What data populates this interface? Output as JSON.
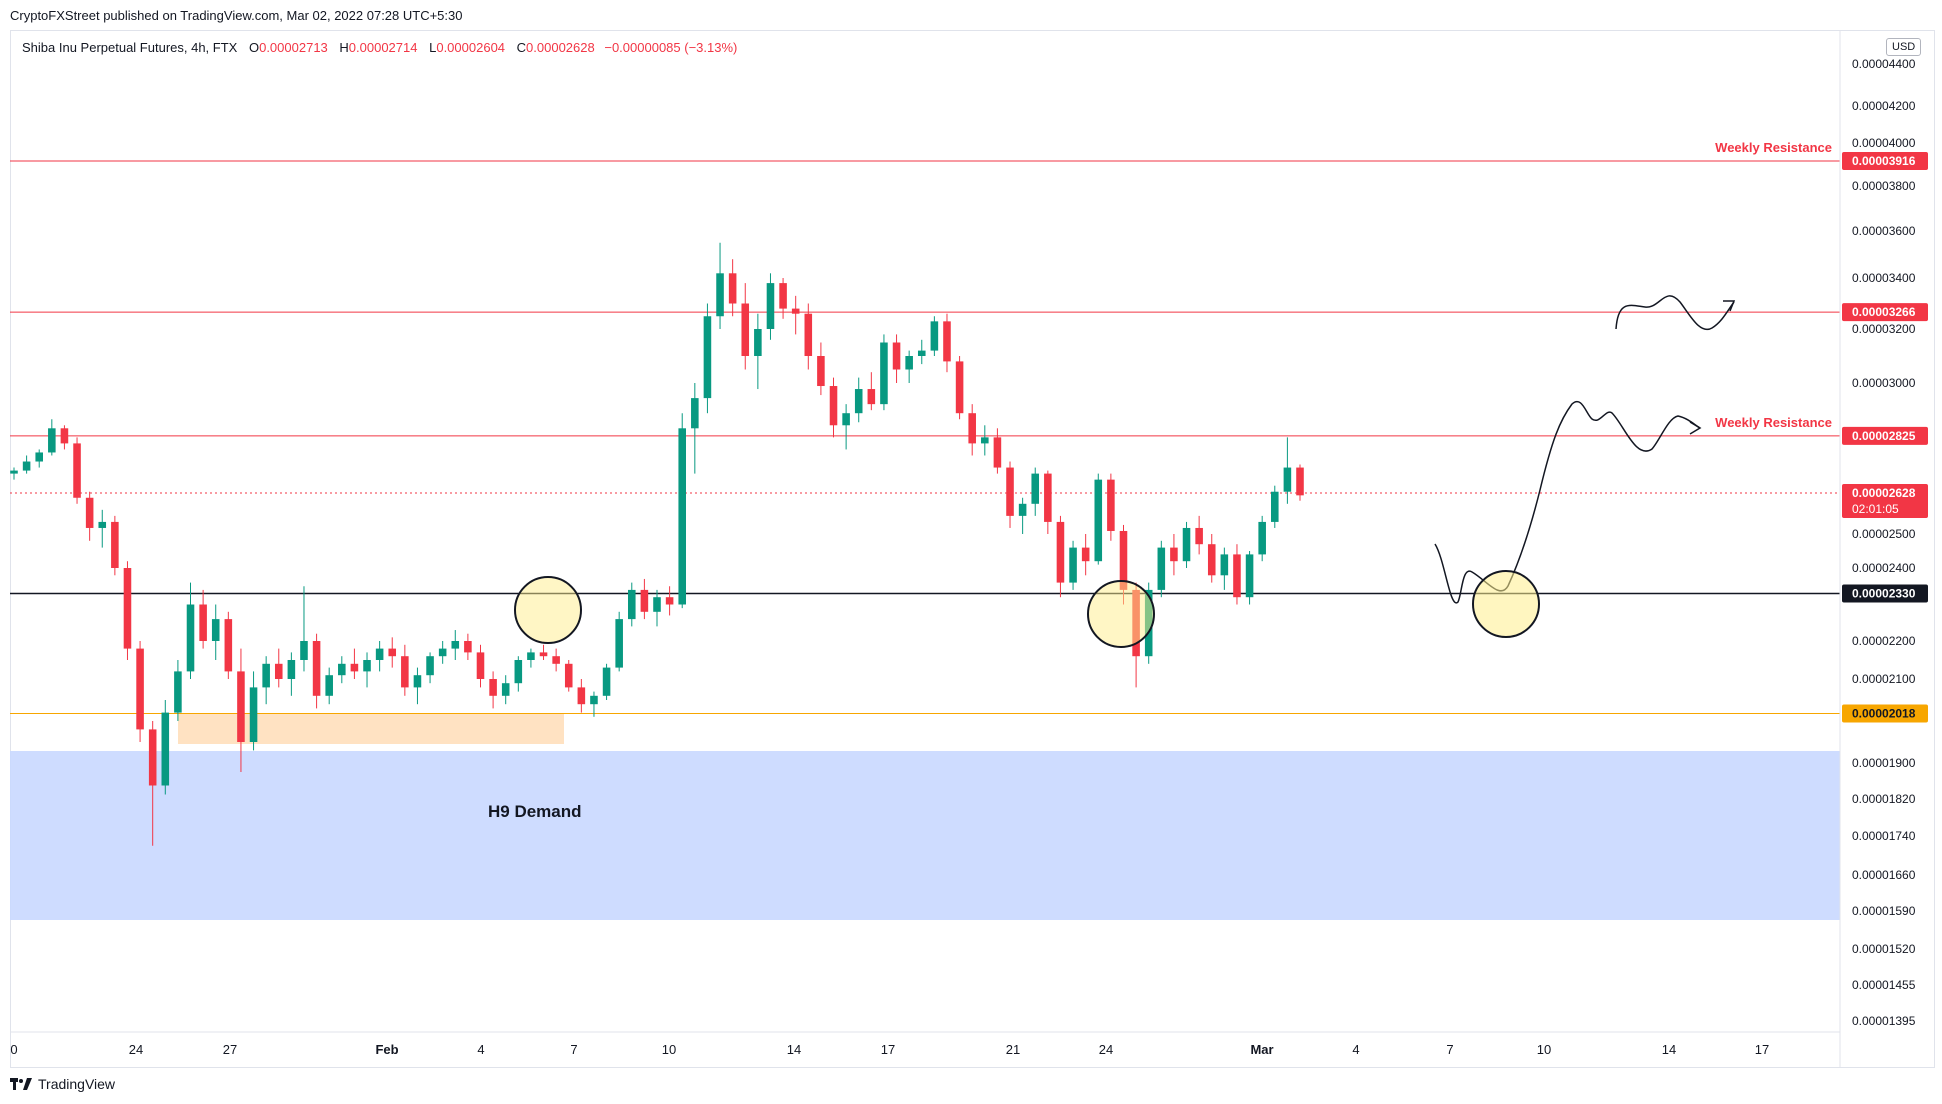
{
  "attribution": "CryptoFXStreet published on TradingView.com, Mar 02, 2022 07:28 UTC+5:30",
  "legend": {
    "symbol": "Shiba Inu Perpetual Futures, 4h, FTX",
    "o_label": "O",
    "o_value": "0.00002713",
    "h_label": "H",
    "h_value": "0.00002714",
    "l_label": "L",
    "l_value": "0.00002604",
    "c_label": "C",
    "c_value": "0.00002628",
    "change": "−0.00000085 (−3.13%)"
  },
  "currency": "USD",
  "footer": {
    "brand": "TradingView",
    "logo_icon": "tradingview-logo-icon"
  },
  "colors": {
    "up": "#089981",
    "down": "#f23645",
    "resistance": "#f23645",
    "support": "#131722",
    "orange": "#f7a600",
    "demand": "#c9d8ff"
  },
  "chart_data": {
    "type": "candlestick",
    "title": "",
    "xlabel": "",
    "ylabel": "",
    "y_ticks": [
      "0.00004400",
      "0.00004200",
      "0.00004000",
      "0.00003800",
      "0.00003600",
      "0.00003400",
      "0.00003200",
      "0.00003000",
      "0.00002500",
      "0.00002400",
      "0.00002200",
      "0.00002100",
      "0.00001900",
      "0.00001820",
      "0.00001740",
      "0.00001660",
      "0.00001590",
      "0.00001520",
      "0.00001455",
      "0.00001395"
    ],
    "x_ticks": [
      "0",
      "24",
      "27",
      "Feb",
      "4",
      "7",
      "10",
      "14",
      "17",
      "21",
      "24",
      "Mar",
      "4",
      "7",
      "10",
      "14",
      "17"
    ],
    "levels": [
      {
        "price": 3.916e-05,
        "label": "0.00003916",
        "note": "Weekly Resistance",
        "kind": "resistance"
      },
      {
        "price": 3.266e-05,
        "label": "0.00003266",
        "note": "",
        "kind": "resistance"
      },
      {
        "price": 2.825e-05,
        "label": "0.00002825",
        "note": "Weekly Resistance",
        "kind": "resistance"
      },
      {
        "price": 2.33e-05,
        "label": "0.00002330",
        "note": "",
        "kind": "support"
      },
      {
        "price": 2.018e-05,
        "label": "0.00002018",
        "note": "",
        "kind": "orange"
      }
    ],
    "last_price": {
      "label": "0.00002628",
      "countdown": "02:01:05"
    },
    "demand_zone": {
      "label": "H9 Demand",
      "top": 1.93e-05,
      "bottom": 1.57e-05
    },
    "annotations": [
      "H9 Demand"
    ],
    "candles": [
      [
        2.7e-05,
        2.72e-05,
        2.68e-05,
        2.71e-05
      ],
      [
        2.71e-05,
        2.76e-05,
        2.7e-05,
        2.74e-05
      ],
      [
        2.74e-05,
        2.78e-05,
        2.72e-05,
        2.77e-05
      ],
      [
        2.77e-05,
        2.88e-05,
        2.76e-05,
        2.85e-05
      ],
      [
        2.85e-05,
        2.86e-05,
        2.78e-05,
        2.8e-05
      ],
      [
        2.8e-05,
        2.82e-05,
        2.6e-05,
        2.62e-05
      ],
      [
        2.62e-05,
        2.64e-05,
        2.48e-05,
        2.52e-05
      ],
      [
        2.52e-05,
        2.58e-05,
        2.46e-05,
        2.54e-05
      ],
      [
        2.54e-05,
        2.56e-05,
        2.38e-05,
        2.4e-05
      ],
      [
        2.4e-05,
        2.42e-05,
        2.15e-05,
        2.18e-05
      ],
      [
        2.18e-05,
        2.2e-05,
        1.95e-05,
        1.98e-05
      ],
      [
        1.98e-05,
        2e-05,
        1.72e-05,
        1.85e-05
      ],
      [
        1.85e-05,
        2.05e-05,
        1.83e-05,
        2.02e-05
      ],
      [
        2.02e-05,
        2.15e-05,
        2e-05,
        2.12e-05
      ],
      [
        2.12e-05,
        2.36e-05,
        2.1e-05,
        2.3e-05
      ],
      [
        2.3e-05,
        2.34e-05,
        2.18e-05,
        2.2e-05
      ],
      [
        2.2e-05,
        2.3e-05,
        2.15e-05,
        2.26e-05
      ],
      [
        2.26e-05,
        2.28e-05,
        2.1e-05,
        2.12e-05
      ],
      [
        2.12e-05,
        2.18e-05,
        1.88e-05,
        1.95e-05
      ],
      [
        1.95e-05,
        2.12e-05,
        1.93e-05,
        2.08e-05
      ],
      [
        2.08e-05,
        2.16e-05,
        2.04e-05,
        2.14e-05
      ],
      [
        2.14e-05,
        2.18e-05,
        2.08e-05,
        2.1e-05
      ],
      [
        2.1e-05,
        2.17e-05,
        2.06e-05,
        2.15e-05
      ],
      [
        2.15e-05,
        2.35e-05,
        2.12e-05,
        2.2e-05
      ],
      [
        2.2e-05,
        2.22e-05,
        2.03e-05,
        2.06e-05
      ],
      [
        2.06e-05,
        2.13e-05,
        2.04e-05,
        2.11e-05
      ],
      [
        2.11e-05,
        2.16e-05,
        2.09e-05,
        2.14e-05
      ],
      [
        2.14e-05,
        2.18e-05,
        2.1e-05,
        2.12e-05
      ],
      [
        2.12e-05,
        2.17e-05,
        2.08e-05,
        2.15e-05
      ],
      [
        2.15e-05,
        2.2e-05,
        2.12e-05,
        2.18e-05
      ],
      [
        2.18e-05,
        2.21e-05,
        2.13e-05,
        2.16e-05
      ],
      [
        2.16e-05,
        2.19e-05,
        2.06e-05,
        2.08e-05
      ],
      [
        2.08e-05,
        2.13e-05,
        2.04e-05,
        2.11e-05
      ],
      [
        2.11e-05,
        2.17e-05,
        2.09e-05,
        2.16e-05
      ],
      [
        2.16e-05,
        2.2e-05,
        2.14e-05,
        2.18e-05
      ],
      [
        2.18e-05,
        2.23e-05,
        2.15e-05,
        2.2e-05
      ],
      [
        2.2e-05,
        2.22e-05,
        2.15e-05,
        2.17e-05
      ],
      [
        2.17e-05,
        2.19e-05,
        2.08e-05,
        2.1e-05
      ],
      [
        2.1e-05,
        2.12e-05,
        2.03e-05,
        2.06e-05
      ],
      [
        2.06e-05,
        2.11e-05,
        2.04e-05,
        2.09e-05
      ],
      [
        2.09e-05,
        2.16e-05,
        2.07e-05,
        2.15e-05
      ],
      [
        2.15e-05,
        2.18e-05,
        2.13e-05,
        2.17e-05
      ],
      [
        2.17e-05,
        2.19e-05,
        2.15e-05,
        2.16e-05
      ],
      [
        2.16e-05,
        2.18e-05,
        2.12e-05,
        2.14e-05
      ],
      [
        2.14e-05,
        2.15e-05,
        2.07e-05,
        2.08e-05
      ],
      [
        2.08e-05,
        2.1e-05,
        2.02e-05,
        2.04e-05
      ],
      [
        2.04e-05,
        2.07e-05,
        2.01e-05,
        2.06e-05
      ],
      [
        2.06e-05,
        2.14e-05,
        2.05e-05,
        2.13e-05
      ],
      [
        2.13e-05,
        2.28e-05,
        2.12e-05,
        2.26e-05
      ],
      [
        2.26e-05,
        2.36e-05,
        2.24e-05,
        2.34e-05
      ],
      [
        2.34e-05,
        2.37e-05,
        2.26e-05,
        2.28e-05
      ],
      [
        2.28e-05,
        2.34e-05,
        2.24e-05,
        2.32e-05
      ],
      [
        2.32e-05,
        2.35e-05,
        2.27e-05,
        2.3e-05
      ],
      [
        2.3e-05,
        2.9e-05,
        2.29e-05,
        2.85e-05
      ],
      [
        2.85e-05,
        3e-05,
        2.7e-05,
        2.95e-05
      ],
      [
        2.95e-05,
        3.3e-05,
        2.9e-05,
        3.25e-05
      ],
      [
        3.25e-05,
        3.55e-05,
        3.2e-05,
        3.42e-05
      ],
      [
        3.42e-05,
        3.48e-05,
        3.25e-05,
        3.3e-05
      ],
      [
        3.3e-05,
        3.38e-05,
        3.05e-05,
        3.1e-05
      ],
      [
        3.1e-05,
        3.26e-05,
        2.98e-05,
        3.2e-05
      ],
      [
        3.2e-05,
        3.42e-05,
        3.16e-05,
        3.38e-05
      ],
      [
        3.38e-05,
        3.4e-05,
        3.24e-05,
        3.28e-05
      ],
      [
        3.28e-05,
        3.33e-05,
        3.18e-05,
        3.26e-05
      ],
      [
        3.26e-05,
        3.3e-05,
        3.05e-05,
        3.1e-05
      ],
      [
        3.1e-05,
        3.15e-05,
        2.96e-05,
        2.99e-05
      ],
      [
        2.99e-05,
        3.02e-05,
        2.82e-05,
        2.86e-05
      ],
      [
        2.86e-05,
        2.93e-05,
        2.78e-05,
        2.9e-05
      ],
      [
        2.9e-05,
        3.02e-05,
        2.87e-05,
        2.98e-05
      ],
      [
        2.98e-05,
        3.04e-05,
        2.91e-05,
        2.93e-05
      ],
      [
        2.93e-05,
        3.18e-05,
        2.91e-05,
        3.15e-05
      ],
      [
        3.15e-05,
        3.18e-05,
        3e-05,
        3.05e-05
      ],
      [
        3.05e-05,
        3.12e-05,
        3e-05,
        3.1e-05
      ],
      [
        3.1e-05,
        3.16e-05,
        3.07e-05,
        3.12e-05
      ],
      [
        3.12e-05,
        3.25e-05,
        3.1e-05,
        3.23e-05
      ],
      [
        3.23e-05,
        3.26e-05,
        3.04e-05,
        3.08e-05
      ],
      [
        3.08e-05,
        3.1e-05,
        2.88e-05,
        2.9e-05
      ],
      [
        2.9e-05,
        2.93e-05,
        2.76e-05,
        2.8e-05
      ],
      [
        2.8e-05,
        2.86e-05,
        2.76e-05,
        2.82e-05
      ],
      [
        2.82e-05,
        2.85e-05,
        2.7e-05,
        2.72e-05
      ],
      [
        2.72e-05,
        2.74e-05,
        2.52e-05,
        2.56e-05
      ],
      [
        2.56e-05,
        2.62e-05,
        2.5e-05,
        2.6e-05
      ],
      [
        2.6e-05,
        2.72e-05,
        2.56e-05,
        2.7e-05
      ],
      [
        2.7e-05,
        2.71e-05,
        2.5e-05,
        2.54e-05
      ],
      [
        2.54e-05,
        2.56e-05,
        2.32e-05,
        2.36e-05
      ],
      [
        2.36e-05,
        2.48e-05,
        2.34e-05,
        2.46e-05
      ],
      [
        2.46e-05,
        2.5e-05,
        2.38e-05,
        2.42e-05
      ],
      [
        2.42e-05,
        2.7e-05,
        2.41e-05,
        2.68e-05
      ],
      [
        2.68e-05,
        2.7e-05,
        2.48e-05,
        2.51e-05
      ],
      [
        2.51e-05,
        2.53e-05,
        2.3e-05,
        2.34e-05
      ],
      [
        2.34e-05,
        2.36e-05,
        2.08e-05,
        2.16e-05
      ],
      [
        2.16e-05,
        2.36e-05,
        2.14e-05,
        2.34e-05
      ],
      [
        2.34e-05,
        2.48e-05,
        2.32e-05,
        2.46e-05
      ],
      [
        2.46e-05,
        2.5e-05,
        2.38e-05,
        2.42e-05
      ],
      [
        2.42e-05,
        2.54e-05,
        2.4e-05,
        2.52e-05
      ],
      [
        2.52e-05,
        2.56e-05,
        2.44e-05,
        2.47e-05
      ],
      [
        2.47e-05,
        2.5e-05,
        2.36e-05,
        2.38e-05
      ],
      [
        2.38e-05,
        2.46e-05,
        2.34e-05,
        2.44e-05
      ],
      [
        2.44e-05,
        2.47e-05,
        2.3e-05,
        2.32e-05
      ],
      [
        2.32e-05,
        2.45e-05,
        2.3e-05,
        2.44e-05
      ],
      [
        2.44e-05,
        2.56e-05,
        2.42e-05,
        2.54e-05
      ],
      [
        2.54e-05,
        2.66e-05,
        2.52e-05,
        2.64e-05
      ],
      [
        2.64e-05,
        2.82e-05,
        2.6e-05,
        2.72e-05
      ],
      [
        2.72e-05,
        2.73e-05,
        2.61e-05,
        2.628e-05
      ]
    ]
  }
}
